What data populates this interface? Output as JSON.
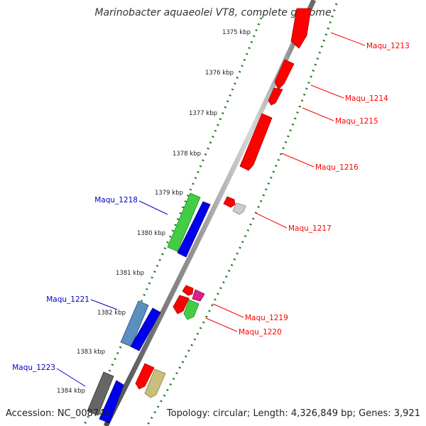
{
  "map": {
    "title": "Marinobacter aquaeolei VT8, complete genome",
    "accession": "Accession: NC_008740",
    "topology": "Topology: circular; Length: 4,326,849 bp; Genes: 3,921"
  },
  "kbp_ticks": [
    "1375 kbp",
    "1376 kbp",
    "1377 kbp",
    "1378 kbp",
    "1379 kbp",
    "1380 kbp",
    "1381 kbp",
    "1382 kbp",
    "1383 kbp",
    "1384 kbp"
  ],
  "genes": [
    {
      "label": "Maqu_1213",
      "color": "#ff0000"
    },
    {
      "label": "Maqu_1214",
      "color": "#ff0000"
    },
    {
      "label": "Maqu_1215",
      "color": "#ff0000"
    },
    {
      "label": "Maqu_1216",
      "color": "#ff0000"
    },
    {
      "label": "Maqu_1217",
      "color": "#ff0000"
    },
    {
      "label": "Maqu_1218",
      "color": "#0000cc"
    },
    {
      "label": "Maqu_1219",
      "color": "#ff0000"
    },
    {
      "label": "Maqu_1220",
      "color": "#ff0000"
    },
    {
      "label": "Maqu_1221",
      "color": "#0000cc"
    },
    {
      "label": "Maqu_1223",
      "color": "#0000cc"
    }
  ]
}
